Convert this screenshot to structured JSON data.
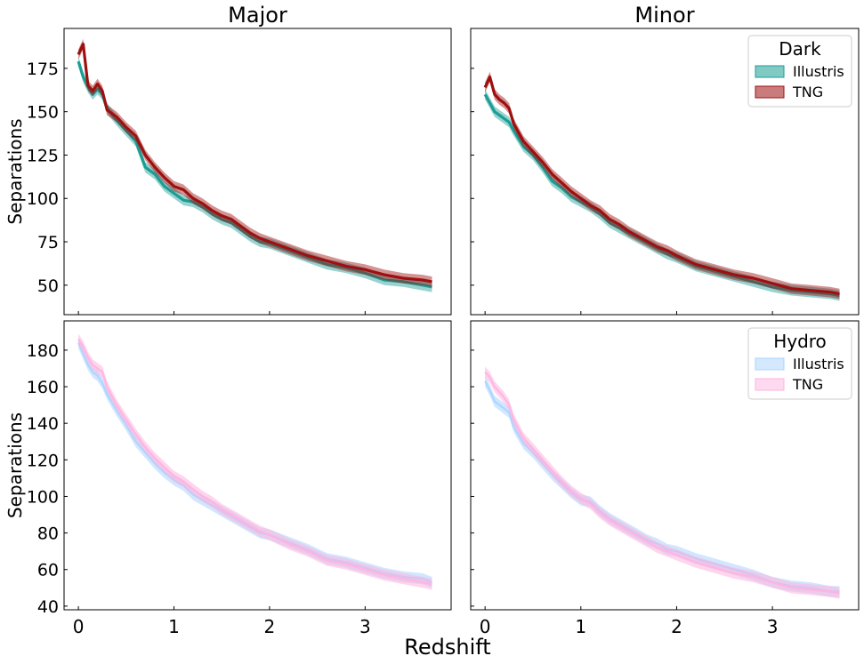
{
  "figure": {
    "xlabel": "Redshift"
  },
  "colors": {
    "dark_illustris": "#1a9e94",
    "dark_tng": "#9e1010",
    "hydro_illustris": "#a9d4ff",
    "hydro_tng": "#ffb3df"
  },
  "legends": {
    "dark": {
      "title": "Dark",
      "entries": [
        "Illustris",
        "TNG"
      ]
    },
    "hydro": {
      "title": "Hydro",
      "entries": [
        "Illustris",
        "TNG"
      ]
    }
  },
  "chart_data": [
    {
      "type": "line",
      "panel": "top-left",
      "title": "Major",
      "xlabel": "",
      "ylabel": "Separations",
      "xlim": [
        -0.15,
        3.9
      ],
      "ylim": [
        33,
        198
      ],
      "xticks": [
        0,
        1,
        2,
        3
      ],
      "yticks": [
        50,
        75,
        100,
        125,
        150,
        175
      ],
      "show_x_ticklabels": false,
      "show_y_ticklabels": true,
      "legend": null,
      "series": [
        {
          "color_key": "dark_illustris",
          "band": 3,
          "x": [
            0,
            0.05,
            0.1,
            0.15,
            0.2,
            0.25,
            0.3,
            0.4,
            0.5,
            0.6,
            0.7,
            0.8,
            0.9,
            1.0,
            1.1,
            1.2,
            1.3,
            1.4,
            1.5,
            1.6,
            1.7,
            1.8,
            1.9,
            2.0,
            2.2,
            2.4,
            2.6,
            2.8,
            3.0,
            3.2,
            3.4,
            3.6,
            3.7
          ],
          "y": [
            179,
            170,
            164,
            160,
            163,
            160,
            152,
            145,
            139,
            133,
            118,
            114,
            107,
            103,
            99,
            98,
            95,
            91,
            88,
            86,
            82,
            78,
            75,
            74,
            70,
            66,
            62,
            60,
            57,
            53,
            52,
            50,
            49
          ]
        },
        {
          "color_key": "dark_tng",
          "band": 3,
          "x": [
            0,
            0.05,
            0.1,
            0.15,
            0.2,
            0.25,
            0.3,
            0.4,
            0.5,
            0.6,
            0.7,
            0.8,
            0.9,
            1.0,
            1.1,
            1.2,
            1.3,
            1.4,
            1.5,
            1.6,
            1.7,
            1.8,
            1.9,
            2.0,
            2.2,
            2.4,
            2.6,
            2.8,
            3.0,
            3.2,
            3.4,
            3.6,
            3.7
          ],
          "y": [
            183,
            189,
            165,
            162,
            166,
            162,
            151,
            147,
            141,
            136,
            125,
            118,
            112,
            107,
            105,
            100,
            97,
            93,
            90,
            88,
            84,
            80,
            77,
            75,
            71,
            67,
            64,
            61,
            59,
            56,
            54,
            53,
            52
          ]
        }
      ]
    },
    {
      "type": "line",
      "panel": "top-right",
      "title": "Minor",
      "xlabel": "",
      "ylabel": "",
      "xlim": [
        -0.15,
        3.9
      ],
      "ylim": [
        33,
        198
      ],
      "xticks": [
        0,
        1,
        2,
        3
      ],
      "yticks": [
        50,
        75,
        100,
        125,
        150,
        175
      ],
      "show_x_ticklabels": false,
      "show_y_ticklabels": false,
      "legend": "dark",
      "series": [
        {
          "color_key": "dark_illustris",
          "band": 3,
          "x": [
            0,
            0.05,
            0.1,
            0.15,
            0.2,
            0.25,
            0.3,
            0.4,
            0.5,
            0.6,
            0.7,
            0.8,
            0.9,
            1.0,
            1.1,
            1.2,
            1.3,
            1.4,
            1.5,
            1.6,
            1.7,
            1.8,
            1.9,
            2.0,
            2.2,
            2.4,
            2.6,
            2.8,
            3.0,
            3.2,
            3.4,
            3.6,
            3.7
          ],
          "y": [
            160,
            155,
            150,
            148,
            146,
            144,
            139,
            130,
            125,
            118,
            110,
            106,
            101,
            98,
            95,
            91,
            86,
            83,
            80,
            77,
            74,
            71,
            68,
            66,
            61,
            58,
            55,
            52,
            49,
            47,
            46,
            45,
            44
          ]
        },
        {
          "color_key": "dark_tng",
          "band": 3,
          "x": [
            0,
            0.05,
            0.1,
            0.15,
            0.2,
            0.25,
            0.3,
            0.4,
            0.5,
            0.6,
            0.7,
            0.8,
            0.9,
            1.0,
            1.1,
            1.2,
            1.3,
            1.4,
            1.5,
            1.6,
            1.7,
            1.8,
            1.9,
            2.0,
            2.2,
            2.4,
            2.6,
            2.8,
            3.0,
            3.2,
            3.4,
            3.6,
            3.7
          ],
          "y": [
            164,
            170,
            160,
            157,
            155,
            152,
            143,
            133,
            127,
            121,
            114,
            109,
            104,
            100,
            96,
            93,
            88,
            85,
            81,
            78,
            75,
            72,
            70,
            67,
            62,
            59,
            56,
            54,
            51,
            48,
            47,
            46,
            45
          ]
        }
      ]
    },
    {
      "type": "line",
      "panel": "bottom-left",
      "title": "",
      "xlabel": "",
      "ylabel": "Separations",
      "xlim": [
        -0.15,
        3.9
      ],
      "ylim": [
        38,
        196
      ],
      "xticks": [
        0,
        1,
        2,
        3
      ],
      "yticks": [
        40,
        60,
        80,
        100,
        120,
        140,
        160,
        180
      ],
      "show_x_ticklabels": true,
      "show_y_ticklabels": true,
      "legend": null,
      "series": [
        {
          "color_key": "hydro_illustris",
          "band": 3,
          "x": [
            0,
            0.05,
            0.1,
            0.15,
            0.2,
            0.25,
            0.3,
            0.4,
            0.5,
            0.6,
            0.7,
            0.8,
            0.9,
            1.0,
            1.1,
            1.2,
            1.3,
            1.4,
            1.5,
            1.6,
            1.7,
            1.8,
            1.9,
            2.0,
            2.2,
            2.4,
            2.6,
            2.8,
            3.0,
            3.2,
            3.4,
            3.6,
            3.7
          ],
          "y": [
            184,
            178,
            172,
            168,
            166,
            162,
            156,
            147,
            139,
            130,
            124,
            118,
            113,
            109,
            106,
            101,
            98,
            95,
            92,
            89,
            86,
            83,
            80,
            79,
            75,
            71,
            66,
            64,
            61,
            58,
            56,
            55,
            53
          ]
        },
        {
          "color_key": "hydro_tng",
          "band": 3,
          "x": [
            0,
            0.05,
            0.1,
            0.15,
            0.2,
            0.25,
            0.3,
            0.4,
            0.5,
            0.6,
            0.7,
            0.8,
            0.9,
            1.0,
            1.1,
            1.2,
            1.3,
            1.4,
            1.5,
            1.6,
            1.7,
            1.8,
            1.9,
            2.0,
            2.2,
            2.4,
            2.6,
            2.8,
            3.0,
            3.2,
            3.4,
            3.6,
            3.7
          ],
          "y": [
            186,
            182,
            176,
            172,
            170,
            168,
            160,
            150,
            142,
            134,
            127,
            121,
            116,
            111,
            108,
            104,
            100,
            97,
            93,
            90,
            87,
            84,
            81,
            79,
            74,
            70,
            65,
            63,
            60,
            57,
            55,
            53,
            52
          ]
        }
      ]
    },
    {
      "type": "line",
      "panel": "bottom-right",
      "title": "",
      "xlabel": "",
      "ylabel": "",
      "xlim": [
        -0.15,
        3.9
      ],
      "ylim": [
        38,
        196
      ],
      "xticks": [
        0,
        1,
        2,
        3
      ],
      "yticks": [
        40,
        60,
        80,
        100,
        120,
        140,
        160,
        180
      ],
      "show_x_ticklabels": true,
      "show_y_ticklabels": false,
      "legend": "hydro",
      "series": [
        {
          "color_key": "hydro_illustris",
          "band": 3,
          "x": [
            0,
            0.05,
            0.1,
            0.15,
            0.2,
            0.25,
            0.3,
            0.4,
            0.5,
            0.6,
            0.7,
            0.8,
            0.9,
            1.0,
            1.1,
            1.2,
            1.3,
            1.4,
            1.5,
            1.6,
            1.7,
            1.8,
            1.9,
            2.0,
            2.2,
            2.4,
            2.6,
            2.8,
            3.0,
            3.2,
            3.4,
            3.6,
            3.7
          ],
          "y": [
            163,
            158,
            152,
            150,
            148,
            146,
            138,
            129,
            124,
            118,
            112,
            107,
            102,
            98,
            97,
            92,
            88,
            85,
            82,
            79,
            76,
            74,
            71,
            70,
            66,
            63,
            60,
            57,
            53,
            51,
            50,
            48,
            48
          ]
        },
        {
          "color_key": "hydro_tng",
          "band": 3,
          "x": [
            0,
            0.05,
            0.1,
            0.15,
            0.2,
            0.25,
            0.3,
            0.4,
            0.5,
            0.6,
            0.7,
            0.8,
            0.9,
            1.0,
            1.1,
            1.2,
            1.3,
            1.4,
            1.5,
            1.6,
            1.7,
            1.8,
            1.9,
            2.0,
            2.2,
            2.4,
            2.6,
            2.8,
            3.0,
            3.2,
            3.4,
            3.6,
            3.7
          ],
          "y": [
            168,
            165,
            160,
            157,
            154,
            150,
            142,
            132,
            126,
            120,
            114,
            108,
            103,
            99,
            96,
            91,
            87,
            84,
            81,
            78,
            75,
            72,
            70,
            68,
            64,
            61,
            58,
            56,
            53,
            50,
            49,
            48,
            47
          ]
        }
      ]
    }
  ]
}
